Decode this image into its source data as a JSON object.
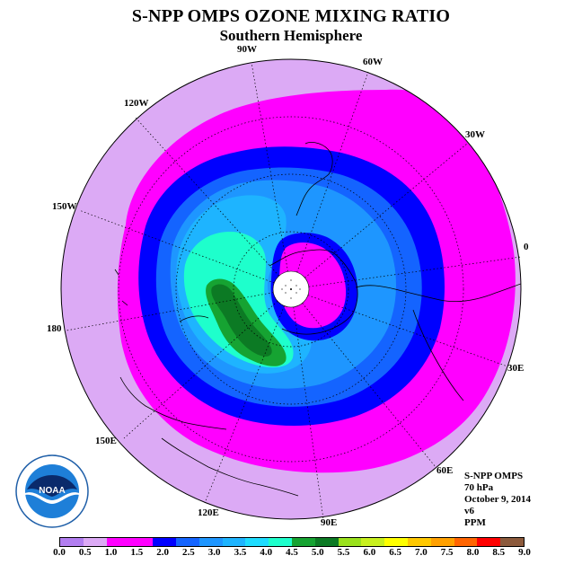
{
  "title": "S-NPP OMPS OZONE MIXING RATIO",
  "subtitle": "Southern Hemisphere",
  "longitude_labels": {
    "w90": "90W",
    "w60": "60W",
    "w30": "30W",
    "e0": "0",
    "w120": "120W",
    "w150": "150W",
    "l180": "180",
    "e30": "30E",
    "e60": "60E",
    "e90": "90E",
    "e120": "120E",
    "e150": "150E"
  },
  "info": {
    "instrument": "S-NPP OMPS",
    "level": "70 hPa",
    "date": "October 9, 2014",
    "version": "v6",
    "units": "PPM"
  },
  "logo_text": "NOAA",
  "colorbar": {
    "colors": [
      "#b27ef0",
      "#dcaaf5",
      "#ff00ff",
      "#ff00ff",
      "#0000ff",
      "#1464ff",
      "#1e96ff",
      "#1eb4ff",
      "#1edcff",
      "#1effcc",
      "#16a332",
      "#0c7a24",
      "#9ae11c",
      "#c8f01e",
      "#ffff00",
      "#ffc800",
      "#ffa000",
      "#ff6400",
      "#ff0000",
      "#8c5a3c"
    ],
    "ticks": [
      "0.0",
      "0.5",
      "1.0",
      "1.5",
      "2.0",
      "2.5",
      "3.0",
      "3.5",
      "4.0",
      "4.5",
      "5.0",
      "5.5",
      "6.0",
      "6.5",
      "7.0",
      "7.5",
      "8.0",
      "8.5",
      "9.0"
    ]
  },
  "map_colors": {
    "outer": "#dcaaf5",
    "band_1_5": "#ff00ff",
    "band_2_0": "#0000ff",
    "band_2_5": "#1464ff",
    "band_3_0": "#1e96ff",
    "band_3_5": "#1eb4ff",
    "band_4_0": "#1effcc",
    "band_4_5": "#16a332",
    "band_5_0": "#0c7a24",
    "pole_hole": "#ffffff"
  }
}
